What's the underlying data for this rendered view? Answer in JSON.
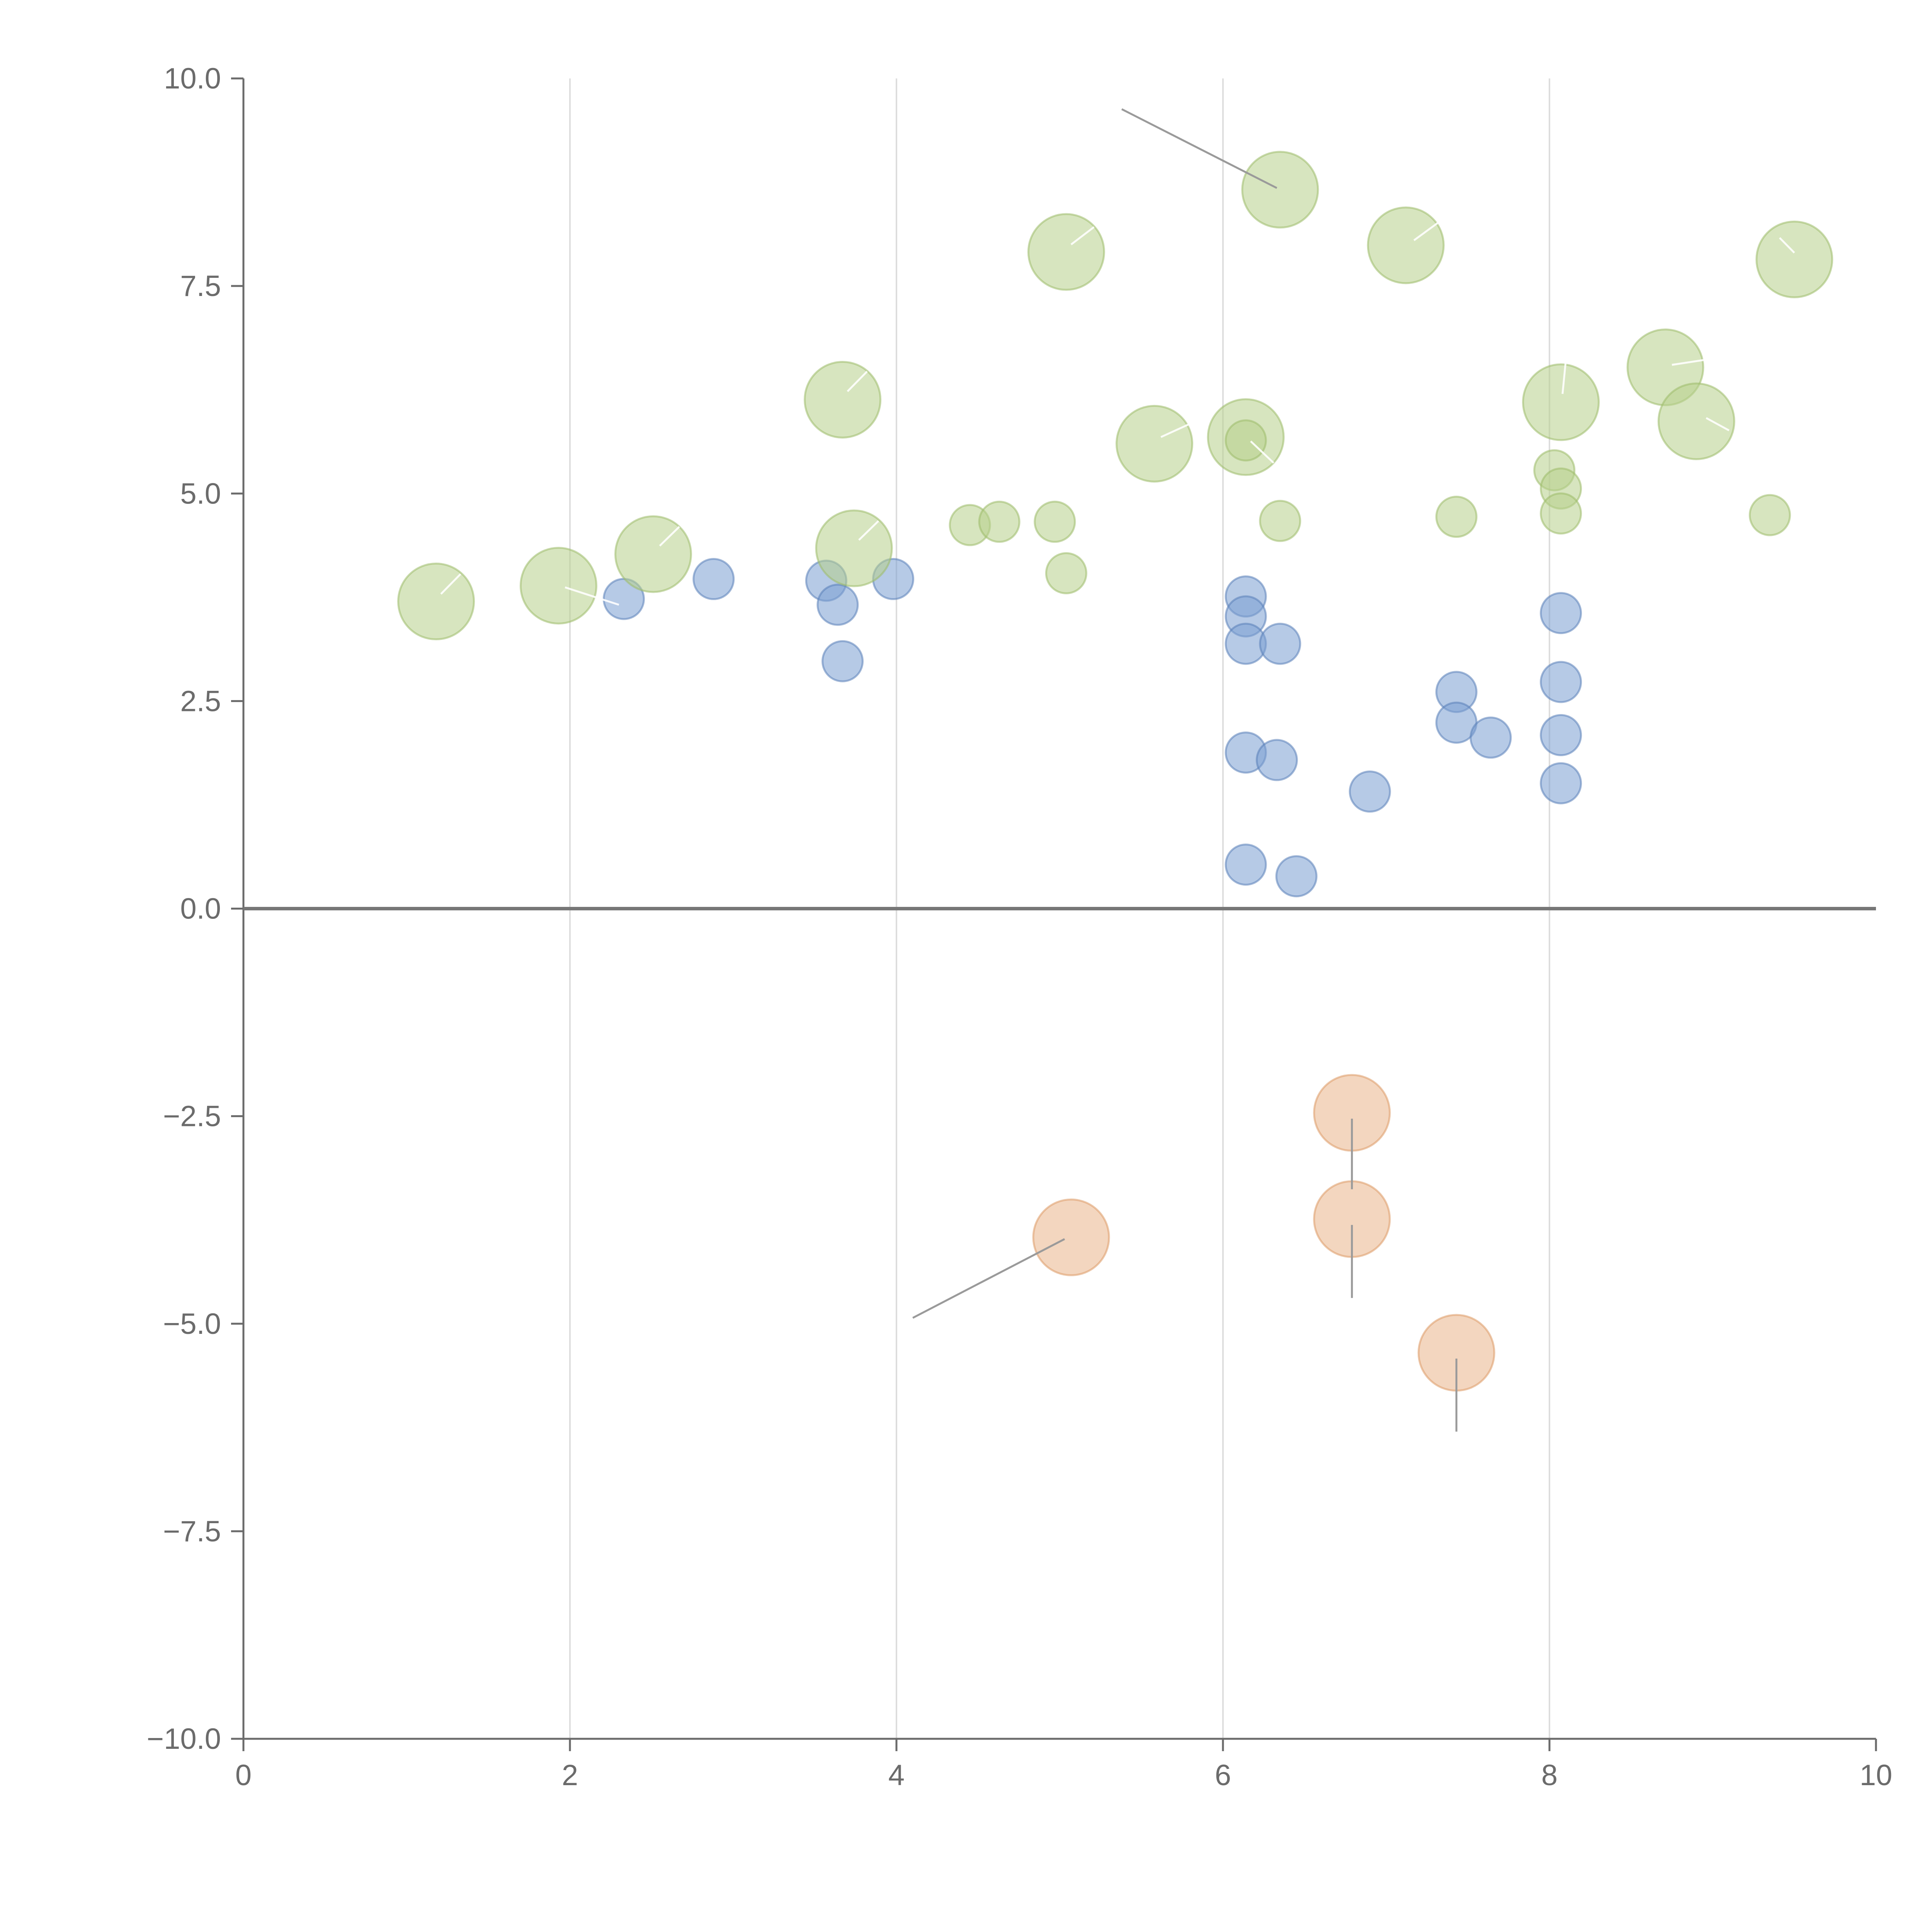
{
  "chart_data": {
    "type": "scatter",
    "title": "",
    "xlabel": "",
    "ylabel": "",
    "xlim": [
      0,
      10
    ],
    "ylim": [
      -10,
      10
    ],
    "x_ticks": [
      {
        "value": 0,
        "label": "0"
      },
      {
        "value": 2,
        "label": "2"
      },
      {
        "value": 4,
        "label": "4"
      },
      {
        "value": 6,
        "label": "6"
      },
      {
        "value": 8,
        "label": "8"
      },
      {
        "value": 10,
        "label": "10"
      }
    ],
    "y_ticks": [
      {
        "value": 10,
        "label": "10.0"
      },
      {
        "value": 7.5,
        "label": "7.5"
      },
      {
        "value": 5,
        "label": "5.0"
      },
      {
        "value": 2.5,
        "label": "2.5"
      },
      {
        "value": 0,
        "label": "0.0"
      },
      {
        "value": -2.5,
        "label": "−2.5"
      },
      {
        "value": -5,
        "label": "−5.0"
      },
      {
        "value": -7.5,
        "label": "−7.5"
      },
      {
        "value": -10,
        "label": "−10.0"
      }
    ],
    "grid": {
      "x": true,
      "y": false
    },
    "reference_line_y": 0,
    "series": [
      {
        "name": "blue",
        "color": "#7a9fd2",
        "stroke": "#5a80b8",
        "points": [
          {
            "x": 2.33,
            "y": 3.73,
            "size": 1
          },
          {
            "x": 2.88,
            "y": 3.97,
            "size": 1
          },
          {
            "x": 3.57,
            "y": 3.95,
            "size": 1
          },
          {
            "x": 3.64,
            "y": 3.66,
            "size": 1
          },
          {
            "x": 3.67,
            "y": 2.98,
            "size": 1
          },
          {
            "x": 3.98,
            "y": 3.97,
            "size": 1
          },
          {
            "x": 6.14,
            "y": 3.76,
            "size": 1
          },
          {
            "x": 6.14,
            "y": 3.52,
            "size": 1
          },
          {
            "x": 6.14,
            "y": 3.19,
            "size": 1
          },
          {
            "x": 6.35,
            "y": 3.19,
            "size": 1
          },
          {
            "x": 6.14,
            "y": 1.88,
            "size": 1
          },
          {
            "x": 6.33,
            "y": 1.79,
            "size": 1
          },
          {
            "x": 6.14,
            "y": 0.53,
            "size": 1
          },
          {
            "x": 6.45,
            "y": 0.39,
            "size": 1
          },
          {
            "x": 6.9,
            "y": 1.41,
            "size": 1
          },
          {
            "x": 7.43,
            "y": 2.61,
            "size": 1
          },
          {
            "x": 7.43,
            "y": 2.24,
            "size": 1
          },
          {
            "x": 7.64,
            "y": 2.06,
            "size": 1
          },
          {
            "x": 8.07,
            "y": 3.56,
            "size": 1
          },
          {
            "x": 8.07,
            "y": 2.73,
            "size": 1
          },
          {
            "x": 8.07,
            "y": 2.09,
            "size": 1
          },
          {
            "x": 8.07,
            "y": 1.51,
            "size": 1
          }
        ]
      },
      {
        "name": "green",
        "color": "#b6cf8a",
        "stroke": "#9cbb6a",
        "points": [
          {
            "x": 1.18,
            "y": 3.7,
            "size": 2
          },
          {
            "x": 1.93,
            "y": 3.89,
            "size": 2
          },
          {
            "x": 2.51,
            "y": 4.27,
            "size": 2
          },
          {
            "x": 3.67,
            "y": 6.13,
            "size": 2
          },
          {
            "x": 3.74,
            "y": 4.34,
            "size": 2
          },
          {
            "x": 4.45,
            "y": 4.62,
            "size": 1
          },
          {
            "x": 4.63,
            "y": 4.66,
            "size": 1
          },
          {
            "x": 4.97,
            "y": 4.66,
            "size": 1
          },
          {
            "x": 5.04,
            "y": 4.04,
            "size": 1
          },
          {
            "x": 5.04,
            "y": 7.91,
            "size": 2
          },
          {
            "x": 5.58,
            "y": 5.6,
            "size": 2
          },
          {
            "x": 6.14,
            "y": 5.68,
            "size": 2
          },
          {
            "x": 6.14,
            "y": 5.64,
            "size": 1
          },
          {
            "x": 6.35,
            "y": 4.67,
            "size": 1
          },
          {
            "x": 6.35,
            "y": 8.66,
            "size": 2
          },
          {
            "x": 7.12,
            "y": 7.99,
            "size": 2
          },
          {
            "x": 7.43,
            "y": 4.72,
            "size": 1
          },
          {
            "x": 8.03,
            "y": 5.28,
            "size": 1
          },
          {
            "x": 8.07,
            "y": 5.06,
            "size": 1
          },
          {
            "x": 8.07,
            "y": 4.76,
            "size": 1
          },
          {
            "x": 8.07,
            "y": 6.1,
            "size": 2
          },
          {
            "x": 8.71,
            "y": 6.52,
            "size": 2
          },
          {
            "x": 8.9,
            "y": 5.87,
            "size": 2
          },
          {
            "x": 9.35,
            "y": 4.74,
            "size": 1
          },
          {
            "x": 9.5,
            "y": 7.82,
            "size": 2
          }
        ]
      },
      {
        "name": "orange",
        "color": "#eab48a",
        "stroke": "#dd9a66",
        "points": [
          {
            "x": 5.07,
            "y": -3.96,
            "size": 2
          },
          {
            "x": 6.79,
            "y": -2.46,
            "size": 2
          },
          {
            "x": 6.79,
            "y": -3.74,
            "size": 2
          },
          {
            "x": 7.43,
            "y": -5.35,
            "size": 2
          }
        ]
      }
    ],
    "leader_lines": [
      {
        "from": [
          6.33,
          8.68
        ],
        "to": [
          5.38,
          9.63
        ]
      },
      {
        "from": [
          5.03,
          -3.98
        ],
        "to": [
          4.1,
          -4.93
        ]
      },
      {
        "from": [
          6.79,
          -2.53
        ],
        "to": [
          6.79,
          -3.38
        ]
      },
      {
        "from": [
          6.79,
          -3.81
        ],
        "to": [
          6.79,
          -4.69
        ]
      },
      {
        "from": [
          7.43,
          -5.42
        ],
        "to": [
          7.43,
          -6.3
        ]
      }
    ],
    "inner_leaders": [
      {
        "from": [
          1.21,
          3.79
        ],
        "to": [
          1.33,
          4.03
        ]
      },
      {
        "from": [
          1.97,
          3.87
        ],
        "to": [
          2.3,
          3.66
        ]
      },
      {
        "from": [
          2.55,
          4.37
        ],
        "to": [
          2.67,
          4.6
        ]
      },
      {
        "from": [
          3.7,
          6.23
        ],
        "to": [
          3.82,
          6.47
        ]
      },
      {
        "from": [
          3.77,
          4.44
        ],
        "to": [
          3.89,
          4.67
        ]
      },
      {
        "from": [
          5.07,
          8.0
        ],
        "to": [
          5.21,
          8.21
        ]
      },
      {
        "from": [
          5.62,
          5.68
        ],
        "to": [
          5.82,
          5.86
        ]
      },
      {
        "from": [
          6.17,
          5.63
        ],
        "to": [
          6.31,
          5.37
        ]
      },
      {
        "from": [
          7.17,
          8.05
        ],
        "to": [
          7.33,
          8.28
        ]
      },
      {
        "from": [
          8.08,
          6.2
        ],
        "to": [
          8.1,
          6.6
        ]
      },
      {
        "from": [
          8.75,
          6.55
        ],
        "to": [
          8.95,
          6.61
        ]
      },
      {
        "from": [
          8.96,
          5.91
        ],
        "to": [
          9.1,
          5.76
        ]
      },
      {
        "from": [
          9.5,
          7.9
        ],
        "to": [
          9.41,
          8.08
        ]
      }
    ]
  }
}
